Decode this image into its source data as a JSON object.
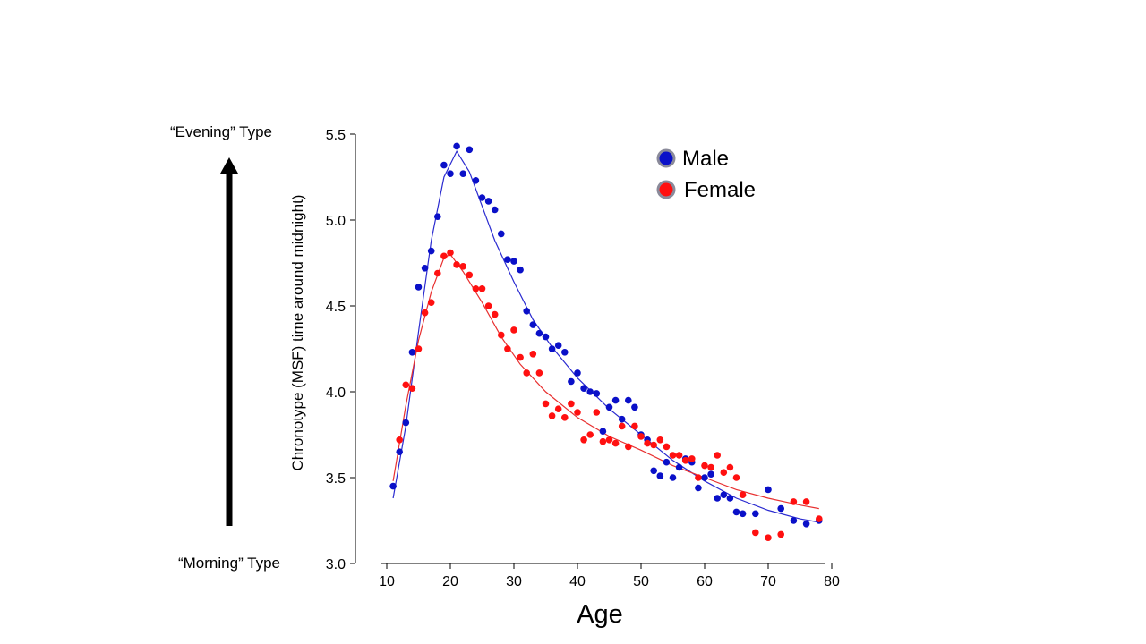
{
  "annotations": {
    "evening": "“Evening” Type",
    "morning": "“Morning” Type"
  },
  "colors": {
    "male": "#0a10c8",
    "female": "#ff1010",
    "male_line": "#2b2bd0",
    "female_line": "#e83030",
    "marker_ring": "#8a8a9a",
    "axis": "#000000"
  },
  "chart_data": {
    "type": "scatter",
    "xlabel": "Age",
    "ylabel": "Chronotype (MSF) time around midnight)",
    "xlim": [
      10,
      80
    ],
    "ylim": [
      3.0,
      5.5
    ],
    "x_ticks": [
      10,
      20,
      30,
      40,
      50,
      60,
      70,
      80
    ],
    "y_ticks": [
      "3.0",
      "3.5",
      "4.0",
      "4.5",
      "5.0",
      "5.5"
    ],
    "legend_position": "top-right",
    "grid": false,
    "series": [
      {
        "name": "Male",
        "color_key": "male",
        "points": [
          [
            11,
            3.45
          ],
          [
            12,
            3.65
          ],
          [
            13,
            3.82
          ],
          [
            14,
            4.23
          ],
          [
            15,
            4.61
          ],
          [
            16,
            4.72
          ],
          [
            17,
            4.82
          ],
          [
            18,
            5.02
          ],
          [
            19,
            5.32
          ],
          [
            20,
            5.27
          ],
          [
            21,
            5.43
          ],
          [
            22,
            5.27
          ],
          [
            23,
            5.41
          ],
          [
            24,
            5.23
          ],
          [
            25,
            5.13
          ],
          [
            26,
            5.11
          ],
          [
            27,
            5.06
          ],
          [
            28,
            4.92
          ],
          [
            29,
            4.77
          ],
          [
            30,
            4.76
          ],
          [
            31,
            4.71
          ],
          [
            32,
            4.47
          ],
          [
            33,
            4.39
          ],
          [
            34,
            4.34
          ],
          [
            35,
            4.32
          ],
          [
            36,
            4.25
          ],
          [
            37,
            4.27
          ],
          [
            38,
            4.23
          ],
          [
            39,
            4.06
          ],
          [
            40,
            4.11
          ],
          [
            41,
            4.02
          ],
          [
            42,
            4.0
          ],
          [
            43,
            3.99
          ],
          [
            44,
            3.77
          ],
          [
            45,
            3.91
          ],
          [
            46,
            3.95
          ],
          [
            47,
            3.84
          ],
          [
            48,
            3.95
          ],
          [
            49,
            3.91
          ],
          [
            50,
            3.75
          ],
          [
            51,
            3.72
          ],
          [
            52,
            3.54
          ],
          [
            53,
            3.51
          ],
          [
            54,
            3.59
          ],
          [
            55,
            3.5
          ],
          [
            56,
            3.56
          ],
          [
            57,
            3.61
          ],
          [
            58,
            3.59
          ],
          [
            59,
            3.44
          ],
          [
            60,
            3.5
          ],
          [
            61,
            3.52
          ],
          [
            62,
            3.38
          ],
          [
            63,
            3.4
          ],
          [
            64,
            3.38
          ],
          [
            65,
            3.3
          ],
          [
            66,
            3.29
          ],
          [
            68,
            3.29
          ],
          [
            70,
            3.43
          ],
          [
            72,
            3.32
          ],
          [
            74,
            3.25
          ],
          [
            76,
            3.23
          ],
          [
            78,
            3.25
          ]
        ],
        "trend": [
          [
            11,
            3.38
          ],
          [
            13,
            3.8
          ],
          [
            15,
            4.35
          ],
          [
            17,
            4.88
          ],
          [
            19,
            5.25
          ],
          [
            21,
            5.4
          ],
          [
            23,
            5.28
          ],
          [
            25,
            5.08
          ],
          [
            27,
            4.88
          ],
          [
            30,
            4.64
          ],
          [
            33,
            4.42
          ],
          [
            36,
            4.26
          ],
          [
            40,
            4.08
          ],
          [
            45,
            3.9
          ],
          [
            50,
            3.75
          ],
          [
            55,
            3.6
          ],
          [
            60,
            3.48
          ],
          [
            65,
            3.38
          ],
          [
            70,
            3.31
          ],
          [
            75,
            3.26
          ],
          [
            78,
            3.24
          ]
        ]
      },
      {
        "name": "Female",
        "color_key": "female",
        "points": [
          [
            12,
            3.72
          ],
          [
            13,
            4.04
          ],
          [
            14,
            4.02
          ],
          [
            15,
            4.25
          ],
          [
            16,
            4.46
          ],
          [
            17,
            4.52
          ],
          [
            18,
            4.69
          ],
          [
            19,
            4.79
          ],
          [
            20,
            4.81
          ],
          [
            21,
            4.74
          ],
          [
            22,
            4.73
          ],
          [
            23,
            4.68
          ],
          [
            24,
            4.6
          ],
          [
            25,
            4.6
          ],
          [
            26,
            4.5
          ],
          [
            27,
            4.45
          ],
          [
            28,
            4.33
          ],
          [
            29,
            4.25
          ],
          [
            30,
            4.36
          ],
          [
            31,
            4.2
          ],
          [
            32,
            4.11
          ],
          [
            33,
            4.22
          ],
          [
            34,
            4.11
          ],
          [
            35,
            3.93
          ],
          [
            36,
            3.86
          ],
          [
            37,
            3.9
          ],
          [
            38,
            3.85
          ],
          [
            39,
            3.93
          ],
          [
            40,
            3.88
          ],
          [
            41,
            3.72
          ],
          [
            42,
            3.75
          ],
          [
            43,
            3.88
          ],
          [
            44,
            3.71
          ],
          [
            45,
            3.72
          ],
          [
            46,
            3.7
          ],
          [
            47,
            3.8
          ],
          [
            48,
            3.68
          ],
          [
            49,
            3.8
          ],
          [
            50,
            3.74
          ],
          [
            51,
            3.7
          ],
          [
            52,
            3.69
          ],
          [
            53,
            3.72
          ],
          [
            54,
            3.68
          ],
          [
            55,
            3.63
          ],
          [
            56,
            3.63
          ],
          [
            57,
            3.6
          ],
          [
            58,
            3.61
          ],
          [
            59,
            3.5
          ],
          [
            60,
            3.57
          ],
          [
            61,
            3.56
          ],
          [
            62,
            3.63
          ],
          [
            63,
            3.53
          ],
          [
            64,
            3.56
          ],
          [
            65,
            3.5
          ],
          [
            66,
            3.4
          ],
          [
            68,
            3.18
          ],
          [
            70,
            3.15
          ],
          [
            72,
            3.17
          ],
          [
            74,
            3.36
          ],
          [
            76,
            3.36
          ],
          [
            78,
            3.26
          ]
        ],
        "trend": [
          [
            11,
            3.48
          ],
          [
            13,
            3.92
          ],
          [
            15,
            4.3
          ],
          [
            17,
            4.58
          ],
          [
            19,
            4.78
          ],
          [
            20,
            4.8
          ],
          [
            22,
            4.7
          ],
          [
            25,
            4.52
          ],
          [
            28,
            4.32
          ],
          [
            31,
            4.16
          ],
          [
            35,
            4.0
          ],
          [
            40,
            3.85
          ],
          [
            45,
            3.74
          ],
          [
            50,
            3.66
          ],
          [
            55,
            3.57
          ],
          [
            60,
            3.5
          ],
          [
            65,
            3.43
          ],
          [
            70,
            3.38
          ],
          [
            75,
            3.34
          ],
          [
            78,
            3.32
          ]
        ]
      }
    ]
  }
}
